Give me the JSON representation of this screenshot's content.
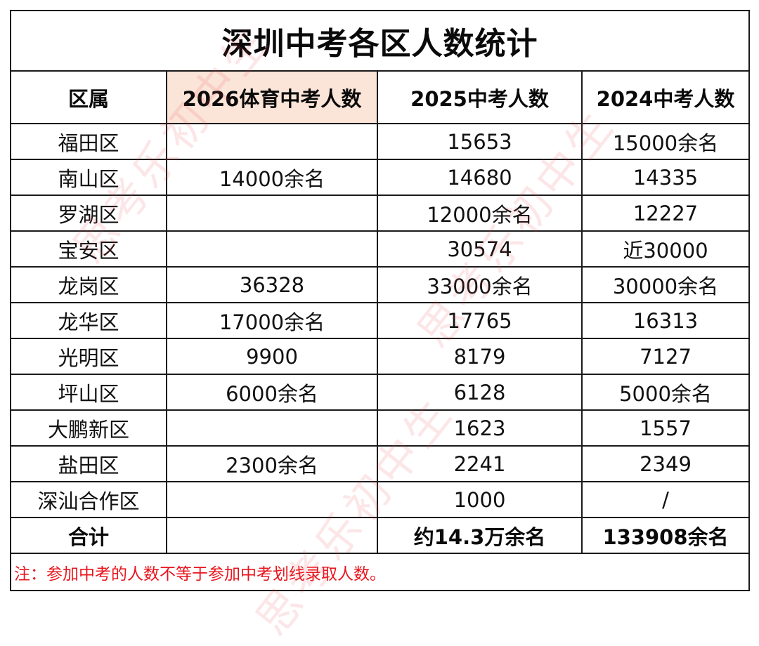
{
  "title": "深圳中考各区人数统计",
  "columns": [
    "区属",
    "2026体育中考人数",
    "2025中考人数",
    "2024中考人数"
  ],
  "highlight_color": "#fbe4d8",
  "rows": [
    {
      "district": "福田区",
      "y2026_pe": "",
      "y2025": "15653",
      "y2024": "15000余名"
    },
    {
      "district": "南山区",
      "y2026_pe": "14000余名",
      "y2025": "14680",
      "y2024": "14335"
    },
    {
      "district": "罗湖区",
      "y2026_pe": "",
      "y2025": "12000余名",
      "y2024": "12227"
    },
    {
      "district": "宝安区",
      "y2026_pe": "",
      "y2025": "30574",
      "y2024": "近30000"
    },
    {
      "district": "龙岗区",
      "y2026_pe": "36328",
      "y2025": "33000余名",
      "y2024": "30000余名"
    },
    {
      "district": "龙华区",
      "y2026_pe": "17000余名",
      "y2025": "17765",
      "y2024": "16313"
    },
    {
      "district": "光明区",
      "y2026_pe": "9900",
      "y2025": "8179",
      "y2024": "7127"
    },
    {
      "district": "坪山区",
      "y2026_pe": "6000余名",
      "y2025": "6128",
      "y2024": "5000余名"
    },
    {
      "district": "大鹏新区",
      "y2026_pe": "",
      "y2025": "1623",
      "y2024": "1557"
    },
    {
      "district": "盐田区",
      "y2026_pe": "2300余名",
      "y2025": "2241",
      "y2024": "2349"
    },
    {
      "district": "深汕合作区",
      "y2026_pe": "",
      "y2025": "1000",
      "y2024": "/"
    }
  ],
  "total": {
    "label": "合计",
    "y2026_pe": "",
    "y2025": "约14.3万余名",
    "y2024": "133908余名"
  },
  "note": "注：参加中考的人数不等于参加中考划线录取人数。",
  "note_color": "#e8161e",
  "watermark": "思考乐初中生"
}
